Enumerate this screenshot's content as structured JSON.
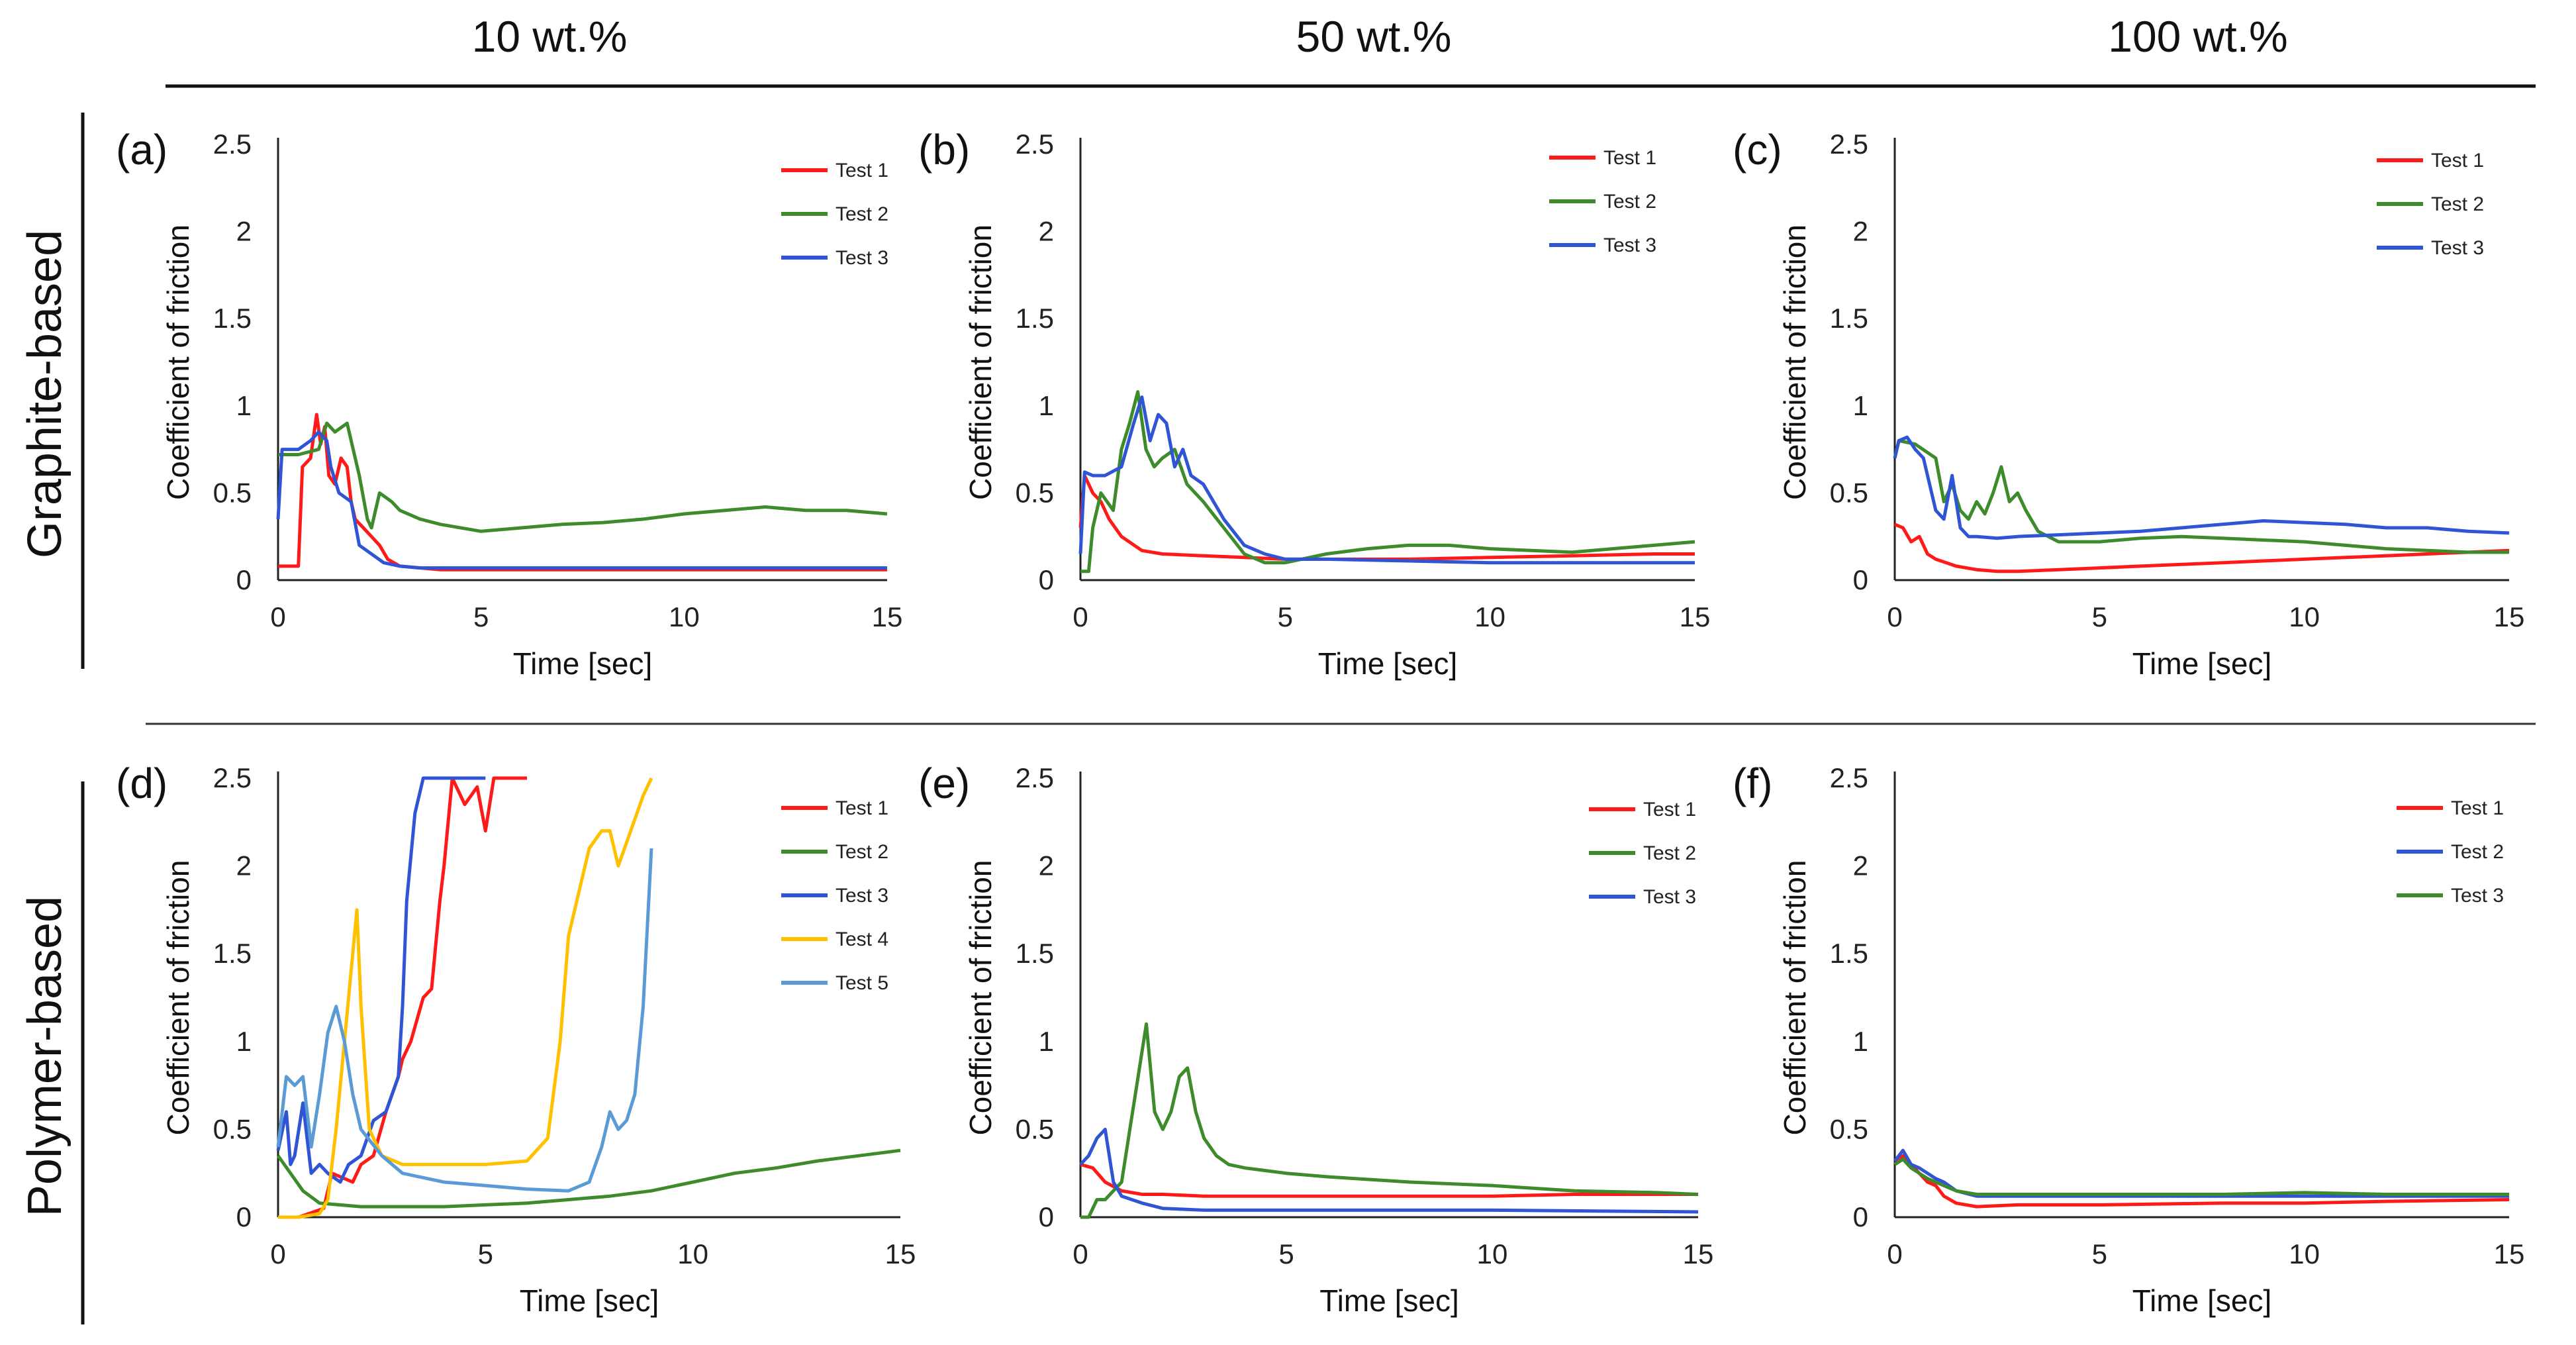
{
  "column_headers": [
    "10 wt.%",
    "50 wt.%",
    "100 wt.%"
  ],
  "row_labels": [
    "Graphite-based",
    "Polymer-based"
  ],
  "colors": {
    "red": "#ff1a1a",
    "green": "#3d8b2a",
    "blue": "#2f55d4",
    "yellow": "#ffc000",
    "lightblue": "#5b9bd5"
  },
  "chart_data": [
    {
      "id": "a",
      "label": "(a)",
      "type": "line",
      "xlabel": "Time [sec]",
      "ylabel": "Coefficient of friction",
      "xlim": [
        0,
        15
      ],
      "ylim": [
        0,
        2.5
      ],
      "xticks": [
        "0",
        "5",
        "10",
        "15"
      ],
      "yticks": [
        "0",
        "0.5",
        "1",
        "1.5",
        "2",
        "2.5"
      ],
      "series": [
        {
          "name": "Test 1",
          "color": "#ff1a1a",
          "x": [
            0,
            0.5,
            0.6,
            0.8,
            0.95,
            1.05,
            1.15,
            1.25,
            1.4,
            1.55,
            1.7,
            1.8,
            1.9,
            2.1,
            2.3,
            2.5,
            2.7,
            3,
            3.5,
            4,
            6,
            8,
            10,
            12,
            15
          ],
          "y": [
            0.08,
            0.08,
            0.65,
            0.7,
            0.95,
            0.78,
            0.88,
            0.6,
            0.55,
            0.7,
            0.65,
            0.45,
            0.35,
            0.3,
            0.25,
            0.2,
            0.12,
            0.08,
            0.07,
            0.06,
            0.06,
            0.06,
            0.06,
            0.06,
            0.06
          ]
        },
        {
          "name": "Test 2",
          "color": "#3d8b2a",
          "x": [
            0,
            0.5,
            1,
            1.2,
            1.4,
            1.7,
            1.8,
            2,
            2.2,
            2.3,
            2.5,
            2.8,
            3,
            3.5,
            4,
            5,
            6,
            7,
            8,
            9,
            10,
            11,
            12,
            13,
            14,
            15
          ],
          "y": [
            0.72,
            0.72,
            0.75,
            0.9,
            0.85,
            0.9,
            0.8,
            0.6,
            0.35,
            0.3,
            0.5,
            0.45,
            0.4,
            0.35,
            0.32,
            0.28,
            0.3,
            0.32,
            0.33,
            0.35,
            0.38,
            0.4,
            0.42,
            0.4,
            0.4,
            0.38
          ]
        },
        {
          "name": "Test 3",
          "color": "#2f55d4",
          "x": [
            0,
            0.1,
            0.5,
            0.8,
            1,
            1.2,
            1.3,
            1.5,
            1.8,
            2,
            2.3,
            2.6,
            3,
            3.5,
            4,
            6,
            8,
            10,
            12,
            15
          ],
          "y": [
            0.35,
            0.75,
            0.75,
            0.8,
            0.85,
            0.8,
            0.65,
            0.5,
            0.45,
            0.2,
            0.15,
            0.1,
            0.08,
            0.07,
            0.07,
            0.07,
            0.07,
            0.07,
            0.07,
            0.07
          ]
        }
      ]
    },
    {
      "id": "b",
      "label": "(b)",
      "type": "line",
      "xlabel": "Time [sec]",
      "ylabel": "Coefficient of friction",
      "xlim": [
        0,
        15
      ],
      "ylim": [
        0,
        2.5
      ],
      "xticks": [
        "0",
        "5",
        "10",
        "15"
      ],
      "yticks": [
        "0",
        "0.5",
        "1",
        "1.5",
        "2",
        "2.5"
      ],
      "series": [
        {
          "name": "Test 1",
          "color": "#ff1a1a",
          "x": [
            0,
            0.1,
            0.3,
            0.5,
            0.7,
            1,
            1.5,
            2,
            3,
            4,
            5,
            6,
            8,
            10,
            12,
            14,
            15
          ],
          "y": [
            0.3,
            0.6,
            0.5,
            0.45,
            0.35,
            0.25,
            0.17,
            0.15,
            0.14,
            0.13,
            0.12,
            0.12,
            0.12,
            0.13,
            0.14,
            0.15,
            0.15
          ]
        },
        {
          "name": "Test 2",
          "color": "#3d8b2a",
          "x": [
            0,
            0.2,
            0.3,
            0.5,
            0.8,
            1,
            1.2,
            1.4,
            1.6,
            1.8,
            2,
            2.3,
            2.6,
            3,
            3.5,
            4,
            4.5,
            5,
            6,
            7,
            8,
            9,
            10,
            11,
            12,
            13,
            14,
            15
          ],
          "y": [
            0.05,
            0.05,
            0.3,
            0.5,
            0.4,
            0.75,
            0.9,
            1.08,
            0.75,
            0.65,
            0.7,
            0.75,
            0.55,
            0.45,
            0.3,
            0.15,
            0.1,
            0.1,
            0.15,
            0.18,
            0.2,
            0.2,
            0.18,
            0.17,
            0.16,
            0.18,
            0.2,
            0.22
          ]
        },
        {
          "name": "Test 3",
          "color": "#2f55d4",
          "x": [
            0,
            0.1,
            0.3,
            0.6,
            1,
            1.3,
            1.5,
            1.7,
            1.9,
            2.1,
            2.3,
            2.5,
            2.7,
            3,
            3.5,
            4,
            4.5,
            5,
            6,
            8,
            10,
            12,
            15
          ],
          "y": [
            0.15,
            0.62,
            0.6,
            0.6,
            0.65,
            0.9,
            1.05,
            0.8,
            0.95,
            0.9,
            0.65,
            0.75,
            0.6,
            0.55,
            0.35,
            0.2,
            0.15,
            0.12,
            0.12,
            0.11,
            0.1,
            0.1,
            0.1
          ]
        }
      ]
    },
    {
      "id": "c",
      "label": "(c)",
      "type": "line",
      "xlabel": "Time [sec]",
      "ylabel": "Coefficient of friction",
      "xlim": [
        0,
        15
      ],
      "ylim": [
        0,
        2.5
      ],
      "xticks": [
        "0",
        "5",
        "10",
        "15"
      ],
      "yticks": [
        "0",
        "0.5",
        "1",
        "1.5",
        "2",
        "2.5"
      ],
      "series": [
        {
          "name": "Test 1",
          "color": "#ff1a1a",
          "x": [
            0,
            0.2,
            0.4,
            0.6,
            0.8,
            1,
            1.5,
            2,
            2.5,
            3,
            4,
            5,
            6,
            7,
            8,
            9,
            10,
            11,
            12,
            13,
            14,
            15
          ],
          "y": [
            0.32,
            0.3,
            0.22,
            0.25,
            0.15,
            0.12,
            0.08,
            0.06,
            0.05,
            0.05,
            0.06,
            0.07,
            0.08,
            0.09,
            0.1,
            0.11,
            0.12,
            0.13,
            0.14,
            0.15,
            0.16,
            0.17
          ]
        },
        {
          "name": "Test 2",
          "color": "#3d8b2a",
          "x": [
            0,
            0.1,
            0.5,
            1,
            1.2,
            1.4,
            1.6,
            1.8,
            2,
            2.2,
            2.4,
            2.6,
            2.8,
            3,
            3.2,
            3.5,
            4,
            5,
            6,
            7,
            8,
            9,
            10,
            11,
            12,
            13,
            14,
            15
          ],
          "y": [
            0.7,
            0.8,
            0.78,
            0.7,
            0.45,
            0.55,
            0.4,
            0.35,
            0.45,
            0.38,
            0.5,
            0.65,
            0.45,
            0.5,
            0.4,
            0.28,
            0.22,
            0.22,
            0.24,
            0.25,
            0.24,
            0.23,
            0.22,
            0.2,
            0.18,
            0.17,
            0.16,
            0.16
          ]
        },
        {
          "name": "Test 3",
          "color": "#2f55d4",
          "x": [
            0,
            0.1,
            0.3,
            0.5,
            0.7,
            1,
            1.2,
            1.4,
            1.6,
            1.8,
            2,
            2.5,
            3,
            4,
            5,
            6,
            7,
            8,
            9,
            10,
            11,
            12,
            13,
            14,
            15
          ],
          "y": [
            0.7,
            0.8,
            0.82,
            0.75,
            0.7,
            0.4,
            0.35,
            0.6,
            0.3,
            0.25,
            0.25,
            0.24,
            0.25,
            0.26,
            0.27,
            0.28,
            0.3,
            0.32,
            0.34,
            0.33,
            0.32,
            0.3,
            0.3,
            0.28,
            0.27
          ]
        }
      ]
    },
    {
      "id": "d",
      "label": "(d)",
      "type": "line",
      "xlabel": "Time [sec]",
      "ylabel": "Coefficient of friction",
      "xlim": [
        0,
        15
      ],
      "ylim": [
        0,
        2.5
      ],
      "xticks": [
        "0",
        "5",
        "10",
        "15"
      ],
      "yticks": [
        "0",
        "0.5",
        "1",
        "1.5",
        "2",
        "2.5"
      ],
      "series": [
        {
          "name": "Test 1",
          "color": "#ff1a1a",
          "x": [
            0,
            0.5,
            1.1,
            1.3,
            1.8,
            2,
            2.3,
            2.6,
            2.9,
            3,
            3.2,
            3.5,
            3.7,
            3.9,
            4,
            4.2,
            4.5,
            4.8,
            5,
            5.2,
            5.5,
            6
          ],
          "y": [
            0.0,
            0.0,
            0.05,
            0.25,
            0.2,
            0.3,
            0.35,
            0.6,
            0.8,
            0.9,
            1.0,
            1.25,
            1.3,
            1.8,
            2.0,
            2.5,
            2.35,
            2.45,
            2.2,
            2.5,
            2.5,
            2.5
          ]
        },
        {
          "name": "Test 2",
          "color": "#3d8b2a",
          "x": [
            0,
            0.3,
            0.6,
            1,
            2,
            3,
            4,
            5,
            6,
            7,
            8,
            9,
            10,
            11,
            12,
            13,
            14,
            15
          ],
          "y": [
            0.35,
            0.25,
            0.15,
            0.08,
            0.06,
            0.06,
            0.06,
            0.07,
            0.08,
            0.1,
            0.12,
            0.15,
            0.2,
            0.25,
            0.28,
            0.32,
            0.35,
            0.38
          ]
        },
        {
          "name": "Test 3",
          "color": "#2f55d4",
          "x": [
            0,
            0.2,
            0.3,
            0.4,
            0.6,
            0.8,
            1,
            1.2,
            1.5,
            1.7,
            2,
            2.3,
            2.6,
            2.9,
            3,
            3.1,
            3.3,
            3.5,
            4,
            5
          ],
          "y": [
            0.38,
            0.6,
            0.3,
            0.35,
            0.65,
            0.25,
            0.3,
            0.25,
            0.2,
            0.3,
            0.35,
            0.55,
            0.6,
            0.8,
            1.2,
            1.8,
            2.3,
            2.5,
            2.5,
            2.5
          ]
        },
        {
          "name": "Test 4",
          "color": "#ffc000",
          "x": [
            0,
            0.5,
            1,
            1.2,
            1.4,
            1.6,
            1.8,
            1.9,
            2,
            2.2,
            2.5,
            3,
            4,
            5,
            6,
            6.5,
            6.8,
            7,
            7.2,
            7.5,
            7.8,
            8,
            8.2,
            8.5,
            8.8,
            9
          ],
          "y": [
            0.0,
            0.0,
            0.02,
            0.1,
            0.5,
            1.0,
            1.5,
            1.75,
            1.2,
            0.5,
            0.35,
            0.3,
            0.3,
            0.3,
            0.32,
            0.45,
            1.0,
            1.6,
            1.8,
            2.1,
            2.2,
            2.2,
            2.0,
            2.2,
            2.4,
            2.5
          ]
        },
        {
          "name": "Test 5",
          "color": "#5b9bd5",
          "x": [
            0,
            0.2,
            0.4,
            0.6,
            0.8,
            1,
            1.2,
            1.4,
            1.6,
            1.8,
            2,
            2.5,
            3,
            4,
            5,
            6,
            7,
            7.5,
            7.8,
            8,
            8.2,
            8.4,
            8.6,
            8.8,
            9
          ],
          "y": [
            0.4,
            0.8,
            0.75,
            0.8,
            0.4,
            0.7,
            1.05,
            1.2,
            1.0,
            0.7,
            0.5,
            0.35,
            0.25,
            0.2,
            0.18,
            0.16,
            0.15,
            0.2,
            0.4,
            0.6,
            0.5,
            0.55,
            0.7,
            1.2,
            2.1
          ]
        }
      ]
    },
    {
      "id": "e",
      "label": "(e)",
      "type": "line",
      "xlabel": "Time [sec]",
      "ylabel": "Coefficient of friction",
      "xlim": [
        0,
        15
      ],
      "ylim": [
        0,
        2.5
      ],
      "xticks": [
        "0",
        "5",
        "10",
        "15"
      ],
      "yticks": [
        "0",
        "0.5",
        "1",
        "1.5",
        "2",
        "2.5"
      ],
      "series": [
        {
          "name": "Test 1",
          "color": "#ff1a1a",
          "x": [
            0,
            0.3,
            0.6,
            1,
            1.5,
            2,
            3,
            5,
            7,
            10,
            12,
            15
          ],
          "y": [
            0.3,
            0.28,
            0.2,
            0.15,
            0.13,
            0.13,
            0.12,
            0.12,
            0.12,
            0.12,
            0.13,
            0.13
          ]
        },
        {
          "name": "Test 2",
          "color": "#3d8b2a",
          "x": [
            0,
            0.2,
            0.4,
            0.6,
            0.8,
            1,
            1.2,
            1.4,
            1.6,
            1.8,
            2,
            2.2,
            2.4,
            2.6,
            2.8,
            3,
            3.3,
            3.6,
            4,
            5,
            6,
            8,
            10,
            12,
            14,
            15
          ],
          "y": [
            0.0,
            0.0,
            0.1,
            0.1,
            0.15,
            0.2,
            0.5,
            0.8,
            1.1,
            0.6,
            0.5,
            0.6,
            0.8,
            0.85,
            0.6,
            0.45,
            0.35,
            0.3,
            0.28,
            0.25,
            0.23,
            0.2,
            0.18,
            0.15,
            0.14,
            0.13
          ]
        },
        {
          "name": "Test 3",
          "color": "#2f55d4",
          "x": [
            0,
            0.2,
            0.4,
            0.6,
            0.8,
            1,
            1.5,
            2,
            3,
            5,
            8,
            10,
            15
          ],
          "y": [
            0.3,
            0.35,
            0.45,
            0.5,
            0.2,
            0.12,
            0.08,
            0.05,
            0.04,
            0.04,
            0.04,
            0.04,
            0.03
          ]
        }
      ]
    },
    {
      "id": "f",
      "label": "(f)",
      "type": "line",
      "xlabel": "Time [sec]",
      "ylabel": "Coefficient of friction",
      "xlim": [
        0,
        15
      ],
      "ylim": [
        0,
        2.5
      ],
      "xticks": [
        "0",
        "5",
        "10",
        "15"
      ],
      "yticks": [
        "0",
        "0.5",
        "1",
        "1.5",
        "2",
        "2.5"
      ],
      "series": [
        {
          "name": "Test 1",
          "color": "#ff1a1a",
          "x": [
            0,
            0.2,
            0.4,
            0.6,
            0.8,
            1,
            1.2,
            1.5,
            2,
            3,
            5,
            8,
            10,
            12,
            15
          ],
          "y": [
            0.3,
            0.35,
            0.3,
            0.25,
            0.2,
            0.18,
            0.12,
            0.08,
            0.06,
            0.07,
            0.07,
            0.08,
            0.08,
            0.09,
            0.1
          ]
        },
        {
          "name": "Test 2",
          "color": "#2f55d4",
          "x": [
            0,
            0.2,
            0.4,
            0.6,
            0.8,
            1,
            1.2,
            1.5,
            2,
            3,
            5,
            8,
            10,
            12,
            15
          ],
          "y": [
            0.32,
            0.38,
            0.3,
            0.28,
            0.25,
            0.22,
            0.2,
            0.15,
            0.12,
            0.12,
            0.12,
            0.12,
            0.12,
            0.12,
            0.12
          ]
        },
        {
          "name": "Test 3",
          "color": "#3d8b2a",
          "x": [
            0,
            0.2,
            0.4,
            0.6,
            0.8,
            1,
            1.2,
            1.5,
            2,
            3,
            5,
            8,
            10,
            12,
            15
          ],
          "y": [
            0.3,
            0.33,
            0.28,
            0.25,
            0.22,
            0.2,
            0.18,
            0.15,
            0.13,
            0.13,
            0.13,
            0.13,
            0.14,
            0.13,
            0.13
          ]
        }
      ]
    }
  ]
}
